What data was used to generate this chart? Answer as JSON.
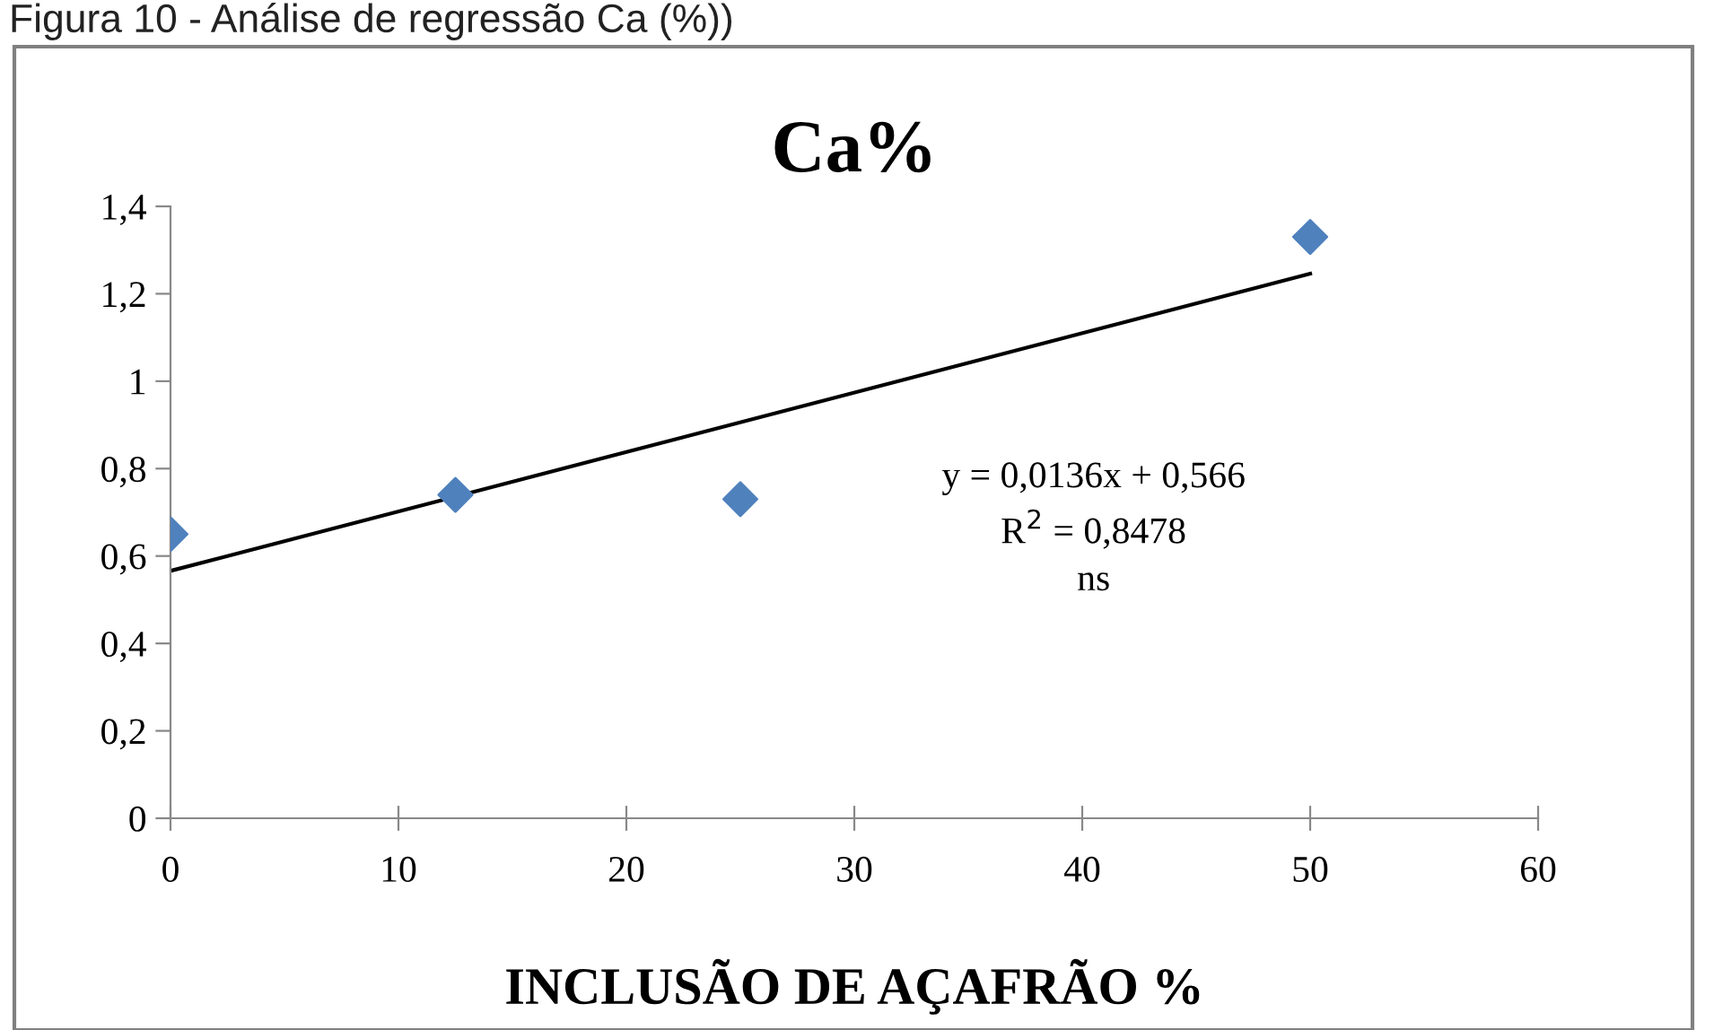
{
  "chart_data": {
    "type": "scatter",
    "title": "Ca%",
    "xlabel": "INCLUSÃO DE AÇAFRÃO %",
    "annotations": [
      "Figura 10 - Análise de regressão Ca (%))",
      "y = 0,0136x + 0,566\nR$^{2}$ = 0,8478\nns"
    ],
    "x": [
      0,
      12.5,
      25,
      50
    ],
    "series": [
      {
        "color": "#4f81bd",
        "values": [
          0.65,
          0.74,
          0.73,
          1.33
        ],
        "marker": "diamond"
      },
      {
        "type": "line",
        "color": "#000000",
        "x": [
          0,
          50
        ],
        "values": [
          0.566,
          1.246
        ],
        "marker": "none",
        "line_style": "solid"
      }
    ],
    "xlim": [
      0,
      60
    ],
    "xticks": [
      0,
      10,
      20,
      30,
      40,
      50,
      60
    ],
    "ylim": [
      0,
      1.4
    ],
    "yticks": [
      0,
      {
        "value": 0.2,
        "label": "0,2"
      },
      {
        "value": 0.4,
        "label": "0,4"
      },
      {
        "value": 0.6,
        "label": "0,6"
      },
      {
        "value": 0.8,
        "label": "0,8"
      },
      1,
      {
        "value": 1.2,
        "label": "1,2"
      },
      {
        "value": 1.4,
        "label": "1,4"
      }
    ],
    "grid": false,
    "legend": false
  }
}
